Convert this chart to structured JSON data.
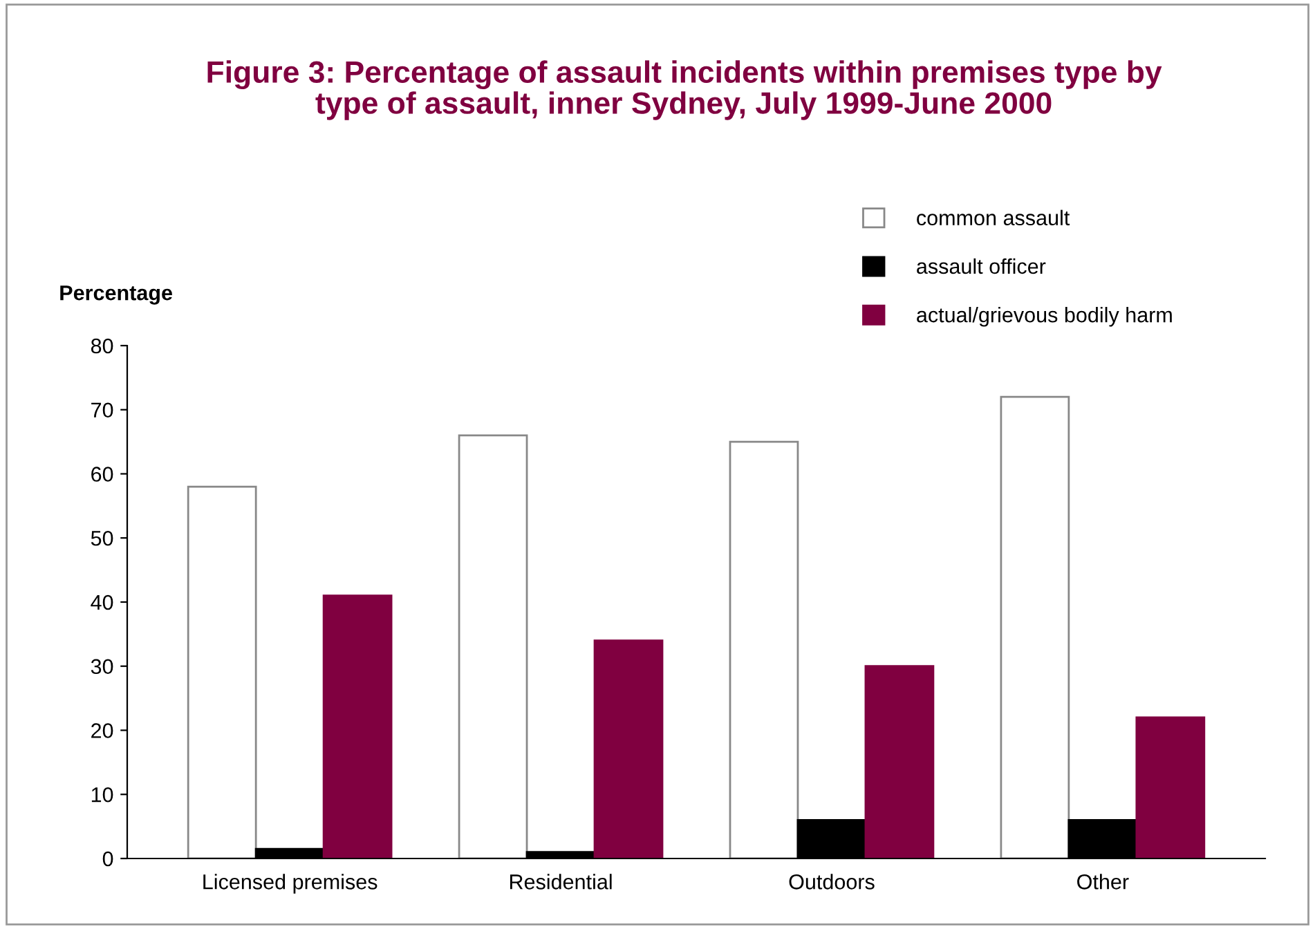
{
  "chart_data": {
    "type": "bar",
    "title": "Figure 3: Percentage of assault incidents within premises type by\ntype of assault, inner Sydney, July 1999-June 2000",
    "ylabel": "Percentage",
    "categories": [
      "Licensed premises",
      "Residential",
      "Outdoors",
      "Other"
    ],
    "series": [
      {
        "name": "common assault",
        "color": "#ffffff",
        "values": [
          58,
          66,
          65,
          72
        ]
      },
      {
        "name": "assault officer",
        "color": "#000000",
        "values": [
          1.5,
          1,
          6,
          6
        ]
      },
      {
        "name": "actual/grievous bodily harm",
        "color": "#800040",
        "values": [
          41,
          34,
          30,
          22
        ]
      }
    ],
    "ylim": [
      0,
      80
    ],
    "yticks": [
      0,
      10,
      20,
      30,
      40,
      50,
      60,
      70,
      80
    ],
    "grid": false,
    "legend": "top right"
  }
}
